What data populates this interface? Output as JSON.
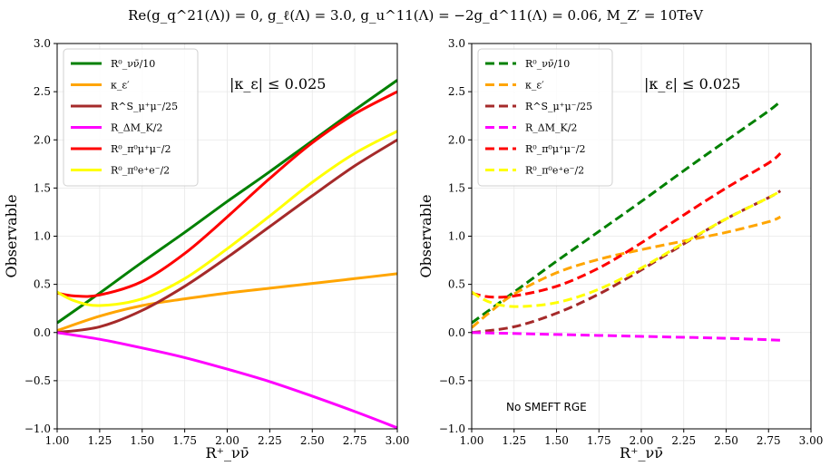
{
  "figure_title": "Re(g_q^21(Λ)) = 0,  g_ℓ(Λ) = 3.0,  g_u^11(Λ) = −2g_d^11(Λ) = 0.06,  M_Z′ = 10TeV",
  "chart_data": [
    {
      "type": "line",
      "xlabel": "R⁺_νν̄",
      "ylabel": "Observable",
      "xlim": [
        1.0,
        3.0
      ],
      "ylim": [
        -1.0,
        3.0
      ],
      "xticks": [
        "1.00",
        "1.25",
        "1.50",
        "1.75",
        "2.00",
        "2.25",
        "2.50",
        "2.75",
        "3.00"
      ],
      "yticks": [
        "−1.0",
        "−0.5",
        "0.0",
        "0.5",
        "1.0",
        "1.5",
        "2.0",
        "2.5",
        "3.0"
      ],
      "grid": true,
      "line_style": "solid",
      "legend_position": "top-left",
      "annotation": "|κ_ε| ≤ 0.025",
      "footnote": "",
      "series": [
        {
          "name": "R⁰_νν̄/10",
          "color": "#008000",
          "x": [
            1.0,
            1.25,
            1.5,
            1.75,
            2.0,
            2.25,
            2.5,
            2.75,
            3.0
          ],
          "y": [
            0.1,
            0.41,
            0.73,
            1.04,
            1.36,
            1.67,
            1.99,
            2.31,
            2.62
          ]
        },
        {
          "name": "κ_ε′",
          "color": "#ffa500",
          "x": [
            1.0,
            1.25,
            1.5,
            1.75,
            2.0,
            2.25,
            2.5,
            2.75,
            3.0
          ],
          "y": [
            0.02,
            0.17,
            0.28,
            0.35,
            0.41,
            0.46,
            0.51,
            0.56,
            0.61
          ]
        },
        {
          "name": "R^S_μ⁺μ⁻/25",
          "color": "#a52a2a",
          "x": [
            1.0,
            1.25,
            1.5,
            1.75,
            2.0,
            2.25,
            2.5,
            2.75,
            3.0
          ],
          "y": [
            0.0,
            0.06,
            0.23,
            0.48,
            0.78,
            1.1,
            1.42,
            1.73,
            2.0
          ]
        },
        {
          "name": "R_ΔM_K/2",
          "color": "#ff00ff",
          "x": [
            1.0,
            1.25,
            1.5,
            1.75,
            2.0,
            2.25,
            2.5,
            2.75,
            3.0
          ],
          "y": [
            0.0,
            -0.07,
            -0.16,
            -0.26,
            -0.38,
            -0.51,
            -0.66,
            -0.82,
            -0.99
          ]
        },
        {
          "name": "R⁰_π⁰μ⁺μ⁻/2",
          "color": "#ff0000",
          "x": [
            1.0,
            1.1,
            1.25,
            1.5,
            1.75,
            2.0,
            2.25,
            2.5,
            2.75,
            3.0
          ],
          "y": [
            0.41,
            0.38,
            0.39,
            0.53,
            0.82,
            1.2,
            1.6,
            1.97,
            2.27,
            2.5
          ]
        },
        {
          "name": "R⁰_π⁰e⁺e⁻/2",
          "color": "#ffff00",
          "x": [
            1.0,
            1.1,
            1.25,
            1.5,
            1.75,
            2.0,
            2.25,
            2.5,
            2.75,
            3.0
          ],
          "y": [
            0.42,
            0.33,
            0.28,
            0.35,
            0.56,
            0.87,
            1.21,
            1.56,
            1.86,
            2.09
          ]
        }
      ]
    },
    {
      "type": "line",
      "xlabel": "R⁺_νν̄",
      "ylabel": "Observable",
      "xlim": [
        1.0,
        3.0
      ],
      "ylim": [
        -1.0,
        3.0
      ],
      "xticks": [
        "1.00",
        "1.25",
        "1.50",
        "1.75",
        "2.00",
        "2.25",
        "2.50",
        "2.75",
        "3.00"
      ],
      "yticks": [
        "−1.0",
        "−0.5",
        "0.0",
        "0.5",
        "1.0",
        "1.5",
        "2.0",
        "2.5",
        "3.0"
      ],
      "grid": true,
      "line_style": "dashed",
      "legend_position": "top-left",
      "annotation": "|κ_ε| ≤ 0.025",
      "footnote": "No SMEFT RGE",
      "series": [
        {
          "name": "R⁰_νν̄/10",
          "color": "#008000",
          "x": [
            1.0,
            1.25,
            1.5,
            1.75,
            2.0,
            2.25,
            2.5,
            2.75,
            2.82
          ],
          "y": [
            0.1,
            0.42,
            0.74,
            1.05,
            1.36,
            1.68,
            1.99,
            2.3,
            2.4
          ]
        },
        {
          "name": "κ_ε′",
          "color": "#ffa500",
          "x": [
            1.0,
            1.1,
            1.25,
            1.5,
            1.75,
            2.0,
            2.25,
            2.5,
            2.75,
            2.82
          ],
          "y": [
            0.05,
            0.2,
            0.4,
            0.62,
            0.76,
            0.86,
            0.95,
            1.04,
            1.15,
            1.2
          ]
        },
        {
          "name": "R^S_μ⁺μ⁻/25",
          "color": "#a52a2a",
          "x": [
            1.0,
            1.25,
            1.5,
            1.75,
            2.0,
            2.25,
            2.5,
            2.75,
            2.82
          ],
          "y": [
            0.0,
            0.06,
            0.2,
            0.4,
            0.65,
            0.92,
            1.18,
            1.4,
            1.47
          ]
        },
        {
          "name": "R_ΔM_K/2",
          "color": "#ff00ff",
          "x": [
            1.0,
            1.5,
            2.0,
            2.5,
            2.82
          ],
          "y": [
            0.0,
            -0.02,
            -0.04,
            -0.06,
            -0.08
          ]
        },
        {
          "name": "R⁰_π⁰μ⁺μ⁻/2",
          "color": "#ff0000",
          "x": [
            1.0,
            1.1,
            1.25,
            1.5,
            1.75,
            2.0,
            2.25,
            2.5,
            2.75,
            2.82
          ],
          "y": [
            0.41,
            0.37,
            0.38,
            0.48,
            0.67,
            0.93,
            1.22,
            1.5,
            1.76,
            1.86
          ]
        },
        {
          "name": "R⁰_π⁰e⁺e⁻/2",
          "color": "#ffff00",
          "x": [
            1.0,
            1.1,
            1.25,
            1.5,
            1.75,
            2.0,
            2.25,
            2.5,
            2.75,
            2.82
          ],
          "y": [
            0.42,
            0.32,
            0.27,
            0.31,
            0.45,
            0.67,
            0.93,
            1.18,
            1.4,
            1.47
          ]
        }
      ]
    }
  ]
}
